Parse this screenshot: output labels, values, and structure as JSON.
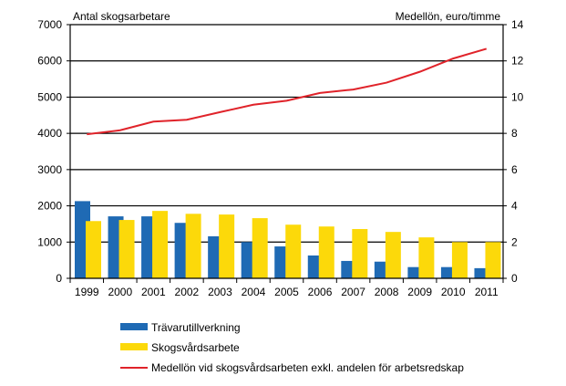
{
  "chart_data": {
    "type": "bar",
    "categories": [
      "1999",
      "2000",
      "2001",
      "2002",
      "2003",
      "2004",
      "2005",
      "2006",
      "2007",
      "2008",
      "2009",
      "2010",
      "2011"
    ],
    "left_axis": {
      "label": "Antal skogsarbetare",
      "ylim": [
        0,
        7000
      ],
      "ticks": [
        0,
        1000,
        2000,
        3000,
        4000,
        5000,
        6000,
        7000
      ]
    },
    "right_axis": {
      "label": "Medellön, euro/timme",
      "ylim": [
        0,
        14
      ],
      "ticks": [
        0,
        2,
        4,
        6,
        8,
        10,
        12,
        14
      ]
    },
    "grid": true,
    "legend_position": "bottom",
    "series": [
      {
        "name": "Trävarutillverkning",
        "type": "bar",
        "axis": "left",
        "color": "#1f6ab4",
        "values": [
          2130,
          1710,
          1710,
          1530,
          1160,
          1000,
          880,
          630,
          480,
          460,
          310,
          310,
          280
        ]
      },
      {
        "name": "Skogsvårdsarbete",
        "type": "bar",
        "axis": "left",
        "color": "#fcd90a",
        "values": [
          1580,
          1610,
          1860,
          1780,
          1760,
          1660,
          1480,
          1430,
          1360,
          1280,
          1130,
          1000,
          1000
        ]
      },
      {
        "name": "Medellön vid skogsvårdsarbeten exkl. andelen för arbetsredskap",
        "type": "line",
        "axis": "right",
        "color": "#e0232a",
        "values": [
          7.95,
          8.17,
          8.65,
          8.75,
          9.17,
          9.58,
          9.8,
          10.23,
          10.42,
          10.8,
          11.4,
          12.13,
          12.67
        ]
      }
    ]
  }
}
